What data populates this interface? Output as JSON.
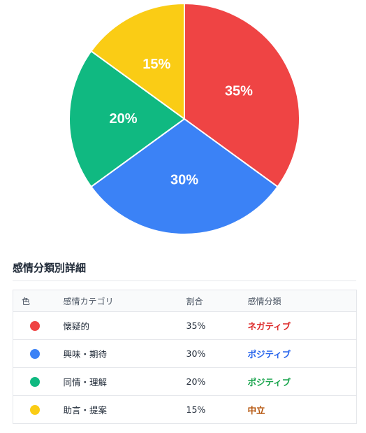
{
  "chart_data": {
    "type": "pie",
    "slices": [
      {
        "label": "懐疑的",
        "value": 35,
        "display": "35%",
        "color": "#ef4444"
      },
      {
        "label": "興味・期待",
        "value": 30,
        "display": "30%",
        "color": "#3b82f6"
      },
      {
        "label": "同情・理解",
        "value": 20,
        "display": "20%",
        "color": "#10b981"
      },
      {
        "label": "助言・提案",
        "value": 15,
        "display": "15%",
        "color": "#facc15"
      }
    ],
    "start": "12 o'clock",
    "direction": "clockwise"
  },
  "details": {
    "title": "感情分類別詳細",
    "headers": {
      "color": "色",
      "category": "感情カテゴリ",
      "ratio": "割合",
      "classification": "感情分類"
    },
    "rows": [
      {
        "color": "#ef4444",
        "category": "懐疑的",
        "ratio": "35%",
        "classification": "ネガティブ",
        "class_color": "#dc2626"
      },
      {
        "color": "#3b82f6",
        "category": "興味・期待",
        "ratio": "30%",
        "classification": "ポジティブ",
        "class_color": "#2563eb"
      },
      {
        "color": "#10b981",
        "category": "同情・理解",
        "ratio": "20%",
        "classification": "ポジティブ",
        "class_color": "#16a34a"
      },
      {
        "color": "#facc15",
        "category": "助言・提案",
        "ratio": "15%",
        "classification": "中立",
        "class_color": "#b45309"
      }
    ]
  }
}
